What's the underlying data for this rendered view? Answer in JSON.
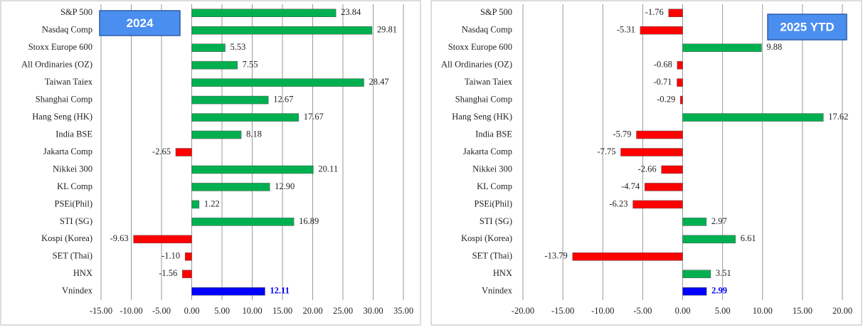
{
  "chart_data": [
    {
      "type": "bar",
      "orientation": "horizontal",
      "title": "2024",
      "categories": [
        "S&P 500",
        "Nasdaq Comp",
        "Stoxx Europe 600",
        "All Ordinaries (OZ)",
        "Taiwan Taiex",
        "Shanghai Comp",
        "Hang Seng (HK)",
        "India BSE",
        "Jakarta Comp",
        "Nikkei 300",
        "KL Comp",
        "PSEi(Phil)",
        "STI (SG)",
        "Kospi (Korea)",
        "SET (Thai)",
        "HNX",
        "Vnindex"
      ],
      "values": [
        23.84,
        29.81,
        5.53,
        7.55,
        28.47,
        12.67,
        17.67,
        8.18,
        -2.65,
        20.11,
        12.9,
        1.22,
        16.89,
        -9.63,
        -1.1,
        -1.56,
        12.11
      ],
      "value_labels": [
        "23.84",
        "29.81",
        "5.53",
        "7.55",
        "28.47",
        "12.67",
        "17.67",
        "8.18",
        "-2.65",
        "20.11",
        "12.90",
        "1.22",
        "16.89",
        "-9.63",
        "-1.10",
        "-1.56",
        "12.11"
      ],
      "colors": [
        "#00b050",
        "#00b050",
        "#00b050",
        "#00b050",
        "#00b050",
        "#00b050",
        "#00b050",
        "#00b050",
        "#ff0000",
        "#00b050",
        "#00b050",
        "#00b050",
        "#00b050",
        "#ff0000",
        "#ff0000",
        "#ff0000",
        "#0000ff"
      ],
      "value_label_colors": [
        "#222",
        "#222",
        "#222",
        "#222",
        "#222",
        "#222",
        "#222",
        "#222",
        "#222",
        "#222",
        "#222",
        "#222",
        "#222",
        "#222",
        "#222",
        "#222",
        "#0000ff"
      ],
      "xlim": [
        -15,
        35
      ],
      "xticks": [
        {
          "value": -15,
          "label": "-15.00"
        },
        {
          "value": -10,
          "label": "-10.00"
        },
        {
          "value": -5,
          "label": "-5.00"
        },
        {
          "value": 0,
          "label": "0.00"
        },
        {
          "value": 5,
          "label": "5.00"
        },
        {
          "value": 10,
          "label": "10.00"
        },
        {
          "value": 15,
          "label": "15.00"
        },
        {
          "value": 20,
          "label": "20.00"
        },
        {
          "value": 25,
          "label": "25.00"
        },
        {
          "value": 30,
          "label": "30.00"
        },
        {
          "value": 35,
          "label": "35.00"
        }
      ],
      "grid": true
    },
    {
      "type": "bar",
      "orientation": "horizontal",
      "title": "2025 YTD",
      "categories": [
        "S&P 500",
        "Nasdaq Comp",
        "Stoxx Europe 600",
        "All Ordinaries (OZ)",
        "Taiwan Taiex",
        "Shanghai Comp",
        "Hang Seng (HK)",
        "India BSE",
        "Jakarta Comp",
        "Nikkei 300",
        "KL Comp",
        "PSEi(Phil)",
        "STI (SG)",
        "Kospi (Korea)",
        "SET (Thai)",
        "HNX",
        "Vnindex"
      ],
      "values": [
        -1.76,
        -5.31,
        9.88,
        -0.68,
        -0.71,
        -0.29,
        17.62,
        -5.79,
        -7.75,
        -2.66,
        -4.74,
        -6.23,
        2.97,
        6.61,
        -13.79,
        3.51,
        2.99
      ],
      "value_labels": [
        "-1.76",
        "-5.31",
        "9.88",
        "-0.68",
        "-0.71",
        "-0.29",
        "17.62",
        "-5.79",
        "-7.75",
        "-2.66",
        "-4.74",
        "-6.23",
        "2.97",
        "6.61",
        "-13.79",
        "3.51",
        "2.99"
      ],
      "colors": [
        "#ff0000",
        "#ff0000",
        "#00b050",
        "#ff0000",
        "#ff0000",
        "#ff0000",
        "#00b050",
        "#ff0000",
        "#ff0000",
        "#ff0000",
        "#ff0000",
        "#ff0000",
        "#00b050",
        "#00b050",
        "#ff0000",
        "#00b050",
        "#0000ff"
      ],
      "value_label_colors": [
        "#222",
        "#222",
        "#222",
        "#222",
        "#222",
        "#222",
        "#222",
        "#222",
        "#222",
        "#222",
        "#222",
        "#222",
        "#222",
        "#222",
        "#222",
        "#222",
        "#0000ff"
      ],
      "xlim": [
        -20,
        20
      ],
      "xticks": [
        {
          "value": -20,
          "label": "-20.00"
        },
        {
          "value": -15,
          "label": "-15.00"
        },
        {
          "value": -10,
          "label": "-10.00"
        },
        {
          "value": -5,
          "label": "-5.00"
        },
        {
          "value": 0,
          "label": "0.00"
        },
        {
          "value": 5,
          "label": "5.00"
        },
        {
          "value": 10,
          "label": "10.00"
        },
        {
          "value": 15,
          "label": "15.00"
        },
        {
          "value": 20,
          "label": "20.00"
        }
      ],
      "grid": true
    }
  ]
}
